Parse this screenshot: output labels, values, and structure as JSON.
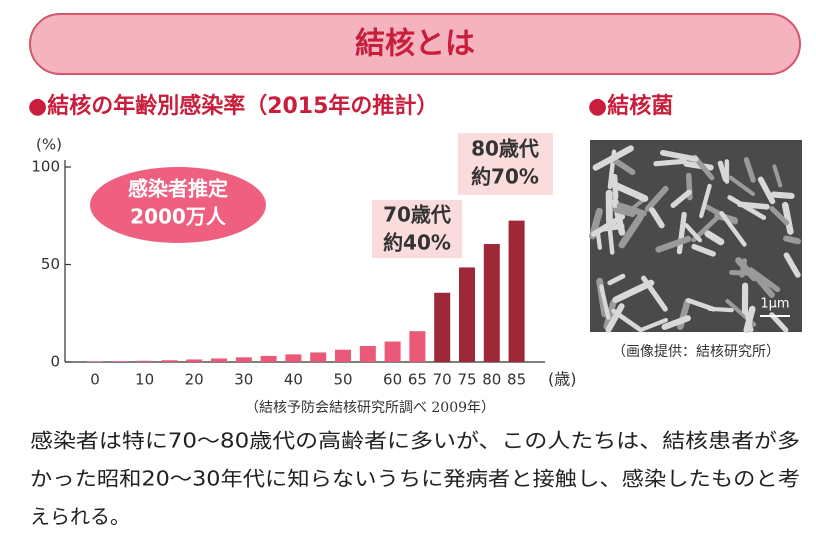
{
  "header": {
    "title": "結核とは"
  },
  "chart_data": {
    "type": "bar",
    "title": "●結核の年齢別感染率（2015年の推計）",
    "y_label": "(%)",
    "x_label": "(歳)",
    "categories": [
      "0",
      null,
      "10",
      null,
      "20",
      null,
      "30",
      null,
      "40",
      null,
      "50",
      null,
      "60",
      "65",
      "70",
      "75",
      "80",
      "85"
    ],
    "values": [
      0.3,
      0.4,
      0.6,
      0.9,
      1.3,
      1.8,
      2.4,
      3.1,
      3.9,
      4.9,
      6.3,
      8.2,
      10.5,
      15.8,
      35.5,
      48.5,
      60.5,
      72.5
    ],
    "colors": [
      "#ea5a78",
      "#ea5a78",
      "#ea5a78",
      "#ea5a78",
      "#ea5a78",
      "#ea5a78",
      "#ea5a78",
      "#ea5a78",
      "#ea5a78",
      "#ea5a78",
      "#ea5a78",
      "#ea5a78",
      "#ea5a78",
      "#ea5a78",
      "#9e2838",
      "#9e2838",
      "#9e2838",
      "#9e2838"
    ],
    "ylim": [
      0,
      100
    ],
    "yticks": [
      0,
      50,
      100
    ],
    "annotations": [
      {
        "lines": [
          "感染者推定",
          "2000万人"
        ]
      },
      {
        "lines": [
          "70歳代",
          "約40%"
        ]
      },
      {
        "lines": [
          "80歳代",
          "約70%"
        ]
      }
    ],
    "source": "（結核予防会結核研究所調べ 2009年）"
  },
  "photo": {
    "title": "●結核菌",
    "scale": "1μm",
    "caption": "（画像提供：結核研究所）"
  },
  "body": {
    "lines": [
      "感染者は特に70〜80歳代の高齢者に多いが、この人たちは、結核患者が多",
      "かった昭和20〜30年代に知らないうちに発病者と接触し、感染したものと考",
      "えられる。"
    ]
  }
}
